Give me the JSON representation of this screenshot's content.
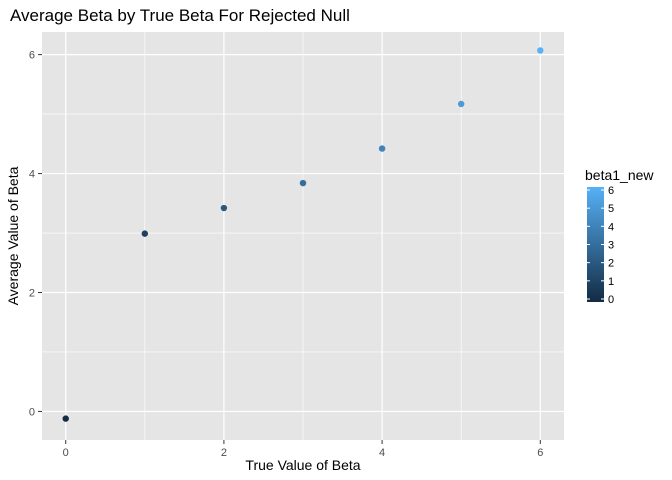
{
  "chart_data": {
    "type": "scatter",
    "title": "Average Beta by True Beta For Rejected Null",
    "xlabel": "True Value of Beta",
    "ylabel": "Average Value of Beta",
    "x": [
      0,
      1,
      2,
      3,
      4,
      5,
      6
    ],
    "y": [
      -0.12,
      2.99,
      3.42,
      3.84,
      4.42,
      5.17,
      6.07
    ],
    "color_values": [
      0,
      1,
      2,
      3,
      4,
      5,
      6
    ],
    "xlim": [
      -0.3,
      6.3
    ],
    "ylim": [
      -0.48,
      6.38
    ],
    "xticks": [
      0,
      2,
      4,
      6
    ],
    "yticks": [
      0,
      2,
      4,
      6
    ],
    "xtick_labels": [
      "0",
      "2",
      "4",
      "6"
    ],
    "ytick_labels": [
      "0",
      "2",
      "4",
      "6"
    ],
    "grid": true,
    "legend": {
      "title": "beta1_new",
      "placement": "right",
      "range": [
        0,
        6
      ],
      "ticks": [
        0,
        1,
        2,
        3,
        4,
        5,
        6
      ],
      "tick_labels": [
        "0",
        "1",
        "2",
        "3",
        "4",
        "5",
        "6"
      ],
      "low_color": "#132b43",
      "high_color": "#56b1f7"
    },
    "panel_color": "#e5e5e5",
    "grid_color": "#ffffff"
  }
}
